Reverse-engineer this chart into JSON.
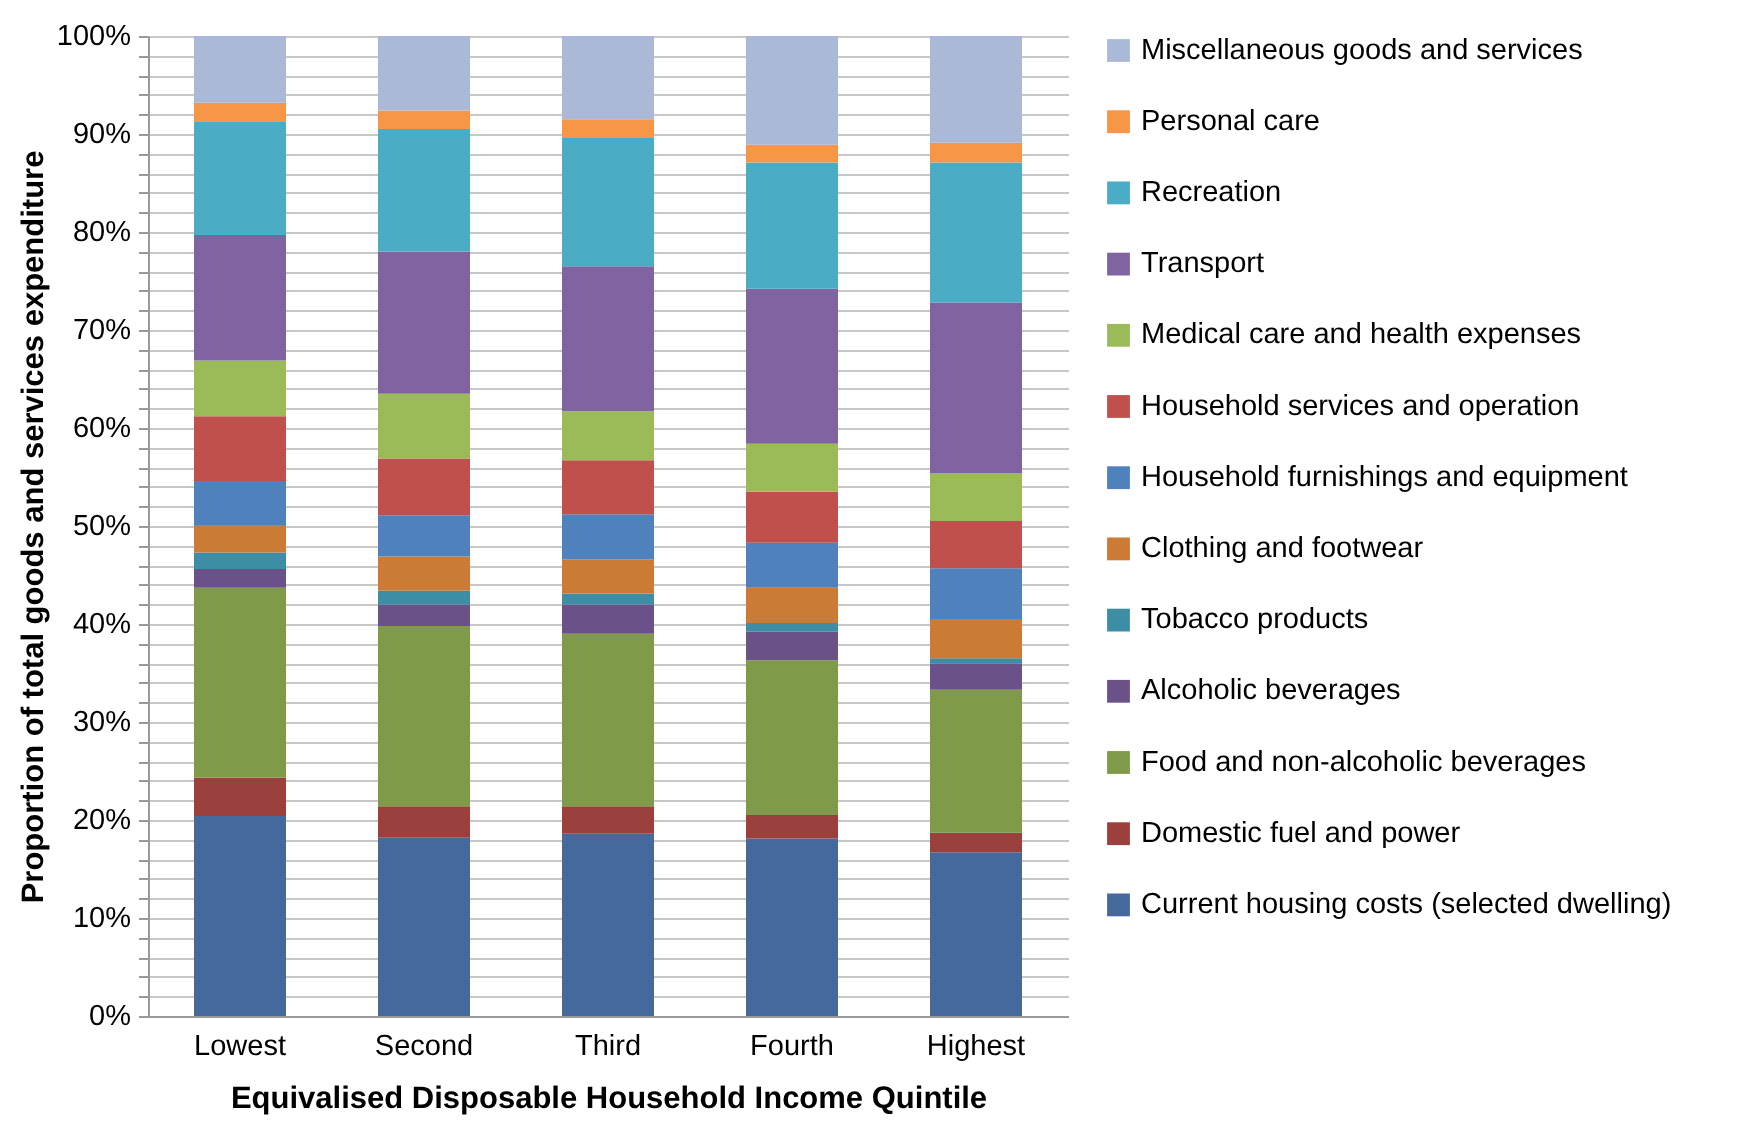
{
  "chart_data": {
    "type": "bar",
    "stacked": true,
    "xlabel": "Equivalised Disposable Household Income Quintile",
    "ylabel": "Proportion of total goods and services expenditure",
    "categories": [
      "Lowest",
      "Second",
      "Third",
      "Fourth",
      "Highest"
    ],
    "series": [
      {
        "name": "Current housing costs (selected dwelling)",
        "color": "#46699c",
        "values": [
          20.4,
          18.2,
          18.6,
          18.1,
          16.7
        ]
      },
      {
        "name": "Domestic fuel and power",
        "color": "#9c403d",
        "values": [
          3.9,
          3.2,
          2.8,
          2.4,
          2.0
        ]
      },
      {
        "name": "Food and non-alcoholic beverages",
        "color": "#7f9a48",
        "values": [
          19.4,
          18.4,
          17.6,
          15.8,
          14.6
        ]
      },
      {
        "name": "Alcoholic beverages",
        "color": "#6a5289",
        "values": [
          1.9,
          2.2,
          3.0,
          2.9,
          2.7
        ]
      },
      {
        "name": "Tobacco products",
        "color": "#3d8da5",
        "values": [
          1.7,
          1.4,
          1.1,
          0.9,
          0.5
        ]
      },
      {
        "name": "Clothing and footwear",
        "color": "#cb7b36",
        "values": [
          2.8,
          3.5,
          3.5,
          3.6,
          4.0
        ]
      },
      {
        "name": "Household furnishings and equipment",
        "color": "#4f81bd",
        "values": [
          4.5,
          4.2,
          4.6,
          4.6,
          5.2
        ]
      },
      {
        "name": "Household services and operation",
        "color": "#c0504d",
        "values": [
          6.6,
          5.8,
          5.5,
          5.2,
          4.8
        ]
      },
      {
        "name": "Medical care and health expenses",
        "color": "#9bbb59",
        "values": [
          5.7,
          6.6,
          5.0,
          4.9,
          4.9
        ]
      },
      {
        "name": "Transport",
        "color": "#8064a2",
        "values": [
          12.8,
          14.5,
          14.8,
          15.8,
          17.4
        ]
      },
      {
        "name": "Recreation",
        "color": "#4bacc6",
        "values": [
          11.6,
          12.5,
          13.1,
          12.9,
          14.3
        ]
      },
      {
        "name": "Personal care",
        "color": "#f79646",
        "values": [
          1.9,
          1.9,
          1.9,
          1.8,
          2.0
        ]
      },
      {
        "name": "Miscellaneous goods and services",
        "color": "#aab9d7",
        "values": [
          6.8,
          7.6,
          8.5,
          11.1,
          10.9
        ]
      }
    ],
    "ylim": [
      0,
      100
    ],
    "yticks": [
      {
        "value": 0,
        "label": "0%"
      },
      {
        "value": 2,
        "label": null
      },
      {
        "value": 4,
        "label": null
      },
      {
        "value": 6,
        "label": null
      },
      {
        "value": 8,
        "label": null
      },
      {
        "value": 10,
        "label": "10%"
      },
      {
        "value": 12,
        "label": null
      },
      {
        "value": 14,
        "label": null
      },
      {
        "value": 16,
        "label": null
      },
      {
        "value": 18,
        "label": null
      },
      {
        "value": 20,
        "label": "20%"
      },
      {
        "value": 22,
        "label": null
      },
      {
        "value": 24,
        "label": null
      },
      {
        "value": 26,
        "label": null
      },
      {
        "value": 28,
        "label": null
      },
      {
        "value": 30,
        "label": "30%"
      },
      {
        "value": 32,
        "label": null
      },
      {
        "value": 34,
        "label": null
      },
      {
        "value": 36,
        "label": null
      },
      {
        "value": 38,
        "label": null
      },
      {
        "value": 40,
        "label": "40%"
      },
      {
        "value": 42,
        "label": null
      },
      {
        "value": 44,
        "label": null
      },
      {
        "value": 46,
        "label": null
      },
      {
        "value": 48,
        "label": null
      },
      {
        "value": 50,
        "label": "50%"
      },
      {
        "value": 52,
        "label": null
      },
      {
        "value": 54,
        "label": null
      },
      {
        "value": 56,
        "label": null
      },
      {
        "value": 58,
        "label": null
      },
      {
        "value": 60,
        "label": "60%"
      },
      {
        "value": 62,
        "label": null
      },
      {
        "value": 64,
        "label": null
      },
      {
        "value": 66,
        "label": null
      },
      {
        "value": 68,
        "label": null
      },
      {
        "value": 70,
        "label": "70%"
      },
      {
        "value": 72,
        "label": null
      },
      {
        "value": 74,
        "label": null
      },
      {
        "value": 76,
        "label": null
      },
      {
        "value": 78,
        "label": null
      },
      {
        "value": 80,
        "label": "80%"
      },
      {
        "value": 82,
        "label": null
      },
      {
        "value": 84,
        "label": null
      },
      {
        "value": 86,
        "label": null
      },
      {
        "value": 88,
        "label": null
      },
      {
        "value": 90,
        "label": "90%"
      },
      {
        "value": 92,
        "label": null
      },
      {
        "value": 94,
        "label": null
      },
      {
        "value": 96,
        "label": null
      },
      {
        "value": 98,
        "label": null
      },
      {
        "value": 100,
        "label": "100%"
      }
    ],
    "grid": "y",
    "legend": "right"
  }
}
